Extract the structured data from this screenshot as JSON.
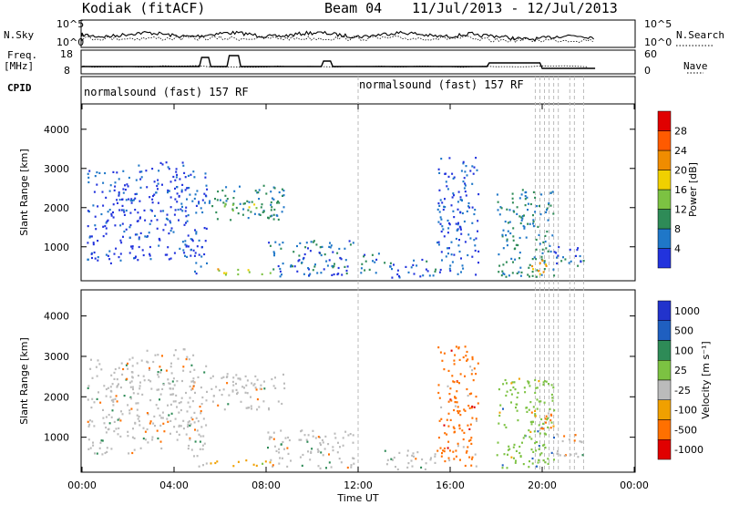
{
  "header": {
    "station": "Kodiak (fitACF)",
    "beam": "Beam 04",
    "date_range": "11/Jul/2013 - 12/Jul/2013"
  },
  "side_labels": {
    "nsky": "N.Sky",
    "freq": "Freq.",
    "freq_unit": "[MHz]",
    "cpid": "CPID",
    "nsearch": "N.Search",
    "nave": "Nave"
  },
  "cpid_primary": "normalsound (fast) 157 RF",
  "cpid_later": "normalsound (fast) 157 RF",
  "colors": {
    "power_scale": [
      "#2233dd",
      "#1f77c8",
      "#2e8b57",
      "#7cc242",
      "#f0d000",
      "#f08c00",
      "#ff5a00",
      "#e00000"
    ],
    "velocity_scale": [
      "#2233cc",
      "#1f5fc0",
      "#2e8b57",
      "#7cc242",
      "#bbbbbb",
      "#f0a000",
      "#ff7000",
      "#e00000"
    ],
    "ground_scatter": "#bbbbbb"
  },
  "chart_data": [
    {
      "type": "line",
      "title": "N.Sky / N.Search",
      "ylabel": "N.Sky",
      "y2label": "N.Search",
      "ytick_labels": [
        "10^5",
        "10^0"
      ],
      "y2tick_labels": [
        "10^5",
        "10^0"
      ]
    },
    {
      "type": "line",
      "title": "Freq. / Nave",
      "ylabel": "Freq. [MHz]",
      "yticks": [
        8,
        18
      ],
      "y2label": "Nave",
      "y2ticks": [
        0,
        60
      ],
      "freq_series": [
        {
          "t": 0,
          "v": 11
        },
        {
          "t": 5.1,
          "v": 11
        },
        {
          "t": 5.2,
          "v": 16
        },
        {
          "t": 5.5,
          "v": 16
        },
        {
          "t": 5.6,
          "v": 11
        },
        {
          "t": 6.3,
          "v": 11
        },
        {
          "t": 6.4,
          "v": 17
        },
        {
          "t": 6.8,
          "v": 17
        },
        {
          "t": 6.9,
          "v": 11
        },
        {
          "t": 10.4,
          "v": 11
        },
        {
          "t": 10.5,
          "v": 14
        },
        {
          "t": 10.8,
          "v": 14
        },
        {
          "t": 10.9,
          "v": 11
        },
        {
          "t": 17.6,
          "v": 11
        },
        {
          "t": 17.7,
          "v": 13
        },
        {
          "t": 19.9,
          "v": 13
        },
        {
          "t": 20.0,
          "v": 10
        },
        {
          "t": 22.3,
          "v": 10
        }
      ]
    },
    {
      "type": "heatmap",
      "title": "Power",
      "xlabel": "Time UT",
      "ylabel": "Slant Range [km]",
      "xtick_labels": [
        "00:00",
        "04:00",
        "08:00",
        "12:00",
        "16:00",
        "20:00",
        "00:00"
      ],
      "xlim_hours": [
        0,
        24
      ],
      "yticks": [
        1000,
        2000,
        3000,
        4000
      ],
      "ylim": [
        180,
        4600
      ],
      "colorbar_label": "Power [dB]",
      "colorbar_ticks": [
        4,
        8,
        12,
        16,
        20,
        24,
        28
      ],
      "clim": [
        0,
        30
      ],
      "scatter_regions": [
        {
          "t0": 0.2,
          "t1": 2.4,
          "r0": 600,
          "r1": 3000,
          "level": 3
        },
        {
          "t0": 2.4,
          "t1": 4.8,
          "r0": 700,
          "r1": 3200,
          "level": 3
        },
        {
          "t0": 4.8,
          "t1": 5.4,
          "r0": 300,
          "r1": 3000,
          "level": 4
        },
        {
          "t0": 5.4,
          "t1": 8.2,
          "r0": 300,
          "r1": 460,
          "level": 17
        },
        {
          "t0": 5.5,
          "t1": 8.8,
          "r0": 1700,
          "r1": 2600,
          "level": 8
        },
        {
          "t0": 6.0,
          "t1": 7.6,
          "r0": 1900,
          "r1": 2200,
          "level": 14
        },
        {
          "t0": 8.0,
          "t1": 11.8,
          "r0": 250,
          "r1": 1200,
          "level": 6
        },
        {
          "t0": 12.0,
          "t1": 13.0,
          "r0": 350,
          "r1": 900,
          "level": 6
        },
        {
          "t0": 13.0,
          "t1": 15.4,
          "r0": 220,
          "r1": 700,
          "level": 5
        },
        {
          "t0": 15.4,
          "t1": 17.2,
          "r0": 300,
          "r1": 3300,
          "level": 4
        },
        {
          "t0": 18.0,
          "t1": 20.5,
          "r0": 250,
          "r1": 2500,
          "level": 8
        },
        {
          "t0": 19.5,
          "t1": 20.4,
          "r0": 300,
          "r1": 700,
          "level": 20
        },
        {
          "t0": 20.5,
          "t1": 21.8,
          "r0": 500,
          "r1": 1100,
          "level": 5
        }
      ]
    },
    {
      "type": "heatmap",
      "title": "Velocity",
      "xlabel": "Time UT",
      "ylabel": "Slant Range [km]",
      "xtick_labels": [
        "00:00",
        "04:00",
        "08:00",
        "12:00",
        "16:00",
        "20:00",
        "00:00"
      ],
      "xlim_hours": [
        0,
        24
      ],
      "yticks": [
        1000,
        2000,
        3000,
        4000
      ],
      "ylim": [
        180,
        4600
      ],
      "colorbar_label": "Velocity [m s⁻¹]",
      "colorbar_tick_labels": [
        "1000",
        "500",
        "100",
        "25",
        "-25",
        "-100",
        "-500",
        "-1000"
      ],
      "scatter_regions": [
        {
          "t0": 0.2,
          "t1": 2.4,
          "r0": 600,
          "r1": 3000,
          "level": 4
        },
        {
          "t0": 2.4,
          "t1": 4.8,
          "r0": 700,
          "r1": 3200,
          "level": 4
        },
        {
          "t0": 4.8,
          "t1": 5.4,
          "r0": 300,
          "r1": 3000,
          "level": 4
        },
        {
          "t0": 5.4,
          "t1": 8.2,
          "r0": 300,
          "r1": 460,
          "level": 5
        },
        {
          "t0": 5.5,
          "t1": 8.8,
          "r0": 1700,
          "r1": 2600,
          "level": 4
        },
        {
          "t0": 8.0,
          "t1": 11.8,
          "r0": 250,
          "r1": 1200,
          "level": 4
        },
        {
          "t0": 13.0,
          "t1": 15.4,
          "r0": 220,
          "r1": 700,
          "level": 4
        },
        {
          "t0": 15.4,
          "t1": 17.2,
          "r0": 300,
          "r1": 3300,
          "level": 6
        },
        {
          "t0": 18.0,
          "t1": 20.5,
          "r0": 250,
          "r1": 2500,
          "level": 3
        },
        {
          "t0": 19.5,
          "t1": 20.4,
          "r0": 1200,
          "r1": 1700,
          "level": 6
        },
        {
          "t0": 20.5,
          "t1": 21.8,
          "r0": 500,
          "r1": 1100,
          "level": 4
        }
      ]
    }
  ]
}
